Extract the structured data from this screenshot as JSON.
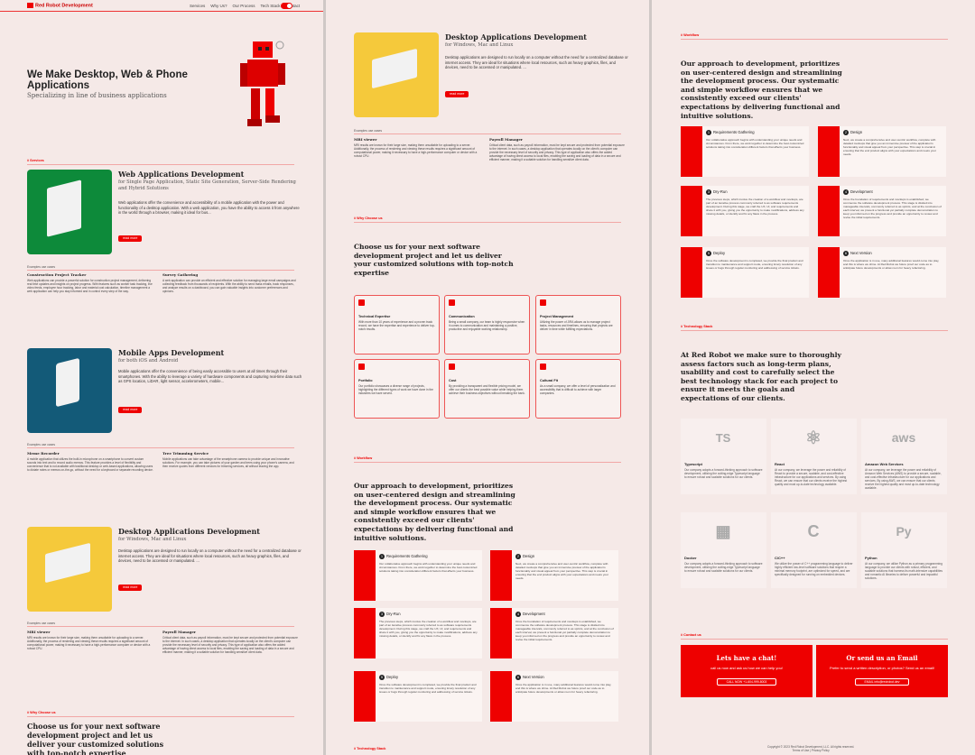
{
  "header": {
    "logo": "Red Robot Development",
    "nav": [
      "Services",
      "Why Us?",
      "Our Process",
      "Tech Stack",
      "Contact"
    ]
  },
  "hero": {
    "title": "We Make Desktop, Web & Phone Applications",
    "subtitle": "Specializing in line of business applications"
  },
  "labels": {
    "services": "# Services",
    "why": "# Why Choose us",
    "workflow": "# Workflow",
    "tech": "# Technology Stack",
    "contact": "# Contact us",
    "examples": "Examples use cases",
    "read_more": "read more"
  },
  "services": [
    {
      "title": "Web Applications Development",
      "sub": "for Single Page Application, Static Site Generation, Server-Side Rendering and Hybrid Solutions",
      "desc": "Web applications offer the convenience and accessibility of a mobile application with the power and functionality of a desktop application. With a web application, you have the ability to access it from anywhere in the world through a browser, making it ideal for bus...",
      "color": "#0d8a3a",
      "examples": [
        {
          "t": "Construction Project Tracker",
          "d": "Web applications can provide a powerful solution for construction project management, delivering real time updates and insights on project progress. With features such as worker task tracking, live video feeds, employee hour tracking, labor and material cost calculation, timeline management a web application can help you stay informed and in control every step of the way."
        },
        {
          "t": "Survey Gathering",
          "d": "A web application can provide an efficient and effective solution for managing large email campaigns and collecting feedback from thousands of recipients. With the ability to send mass emails, track responses, and analyze results on a dashboard, you can gain valuable insights into customer preferences and opinions."
        }
      ]
    },
    {
      "title": "Mobile Apps Development",
      "sub": "for both iOS and Android",
      "desc": "Mobile applications offer the convenience of being easily accessible to users at all times through their smartphones. With the ability to leverage a variety of hardware components and capturing real-time data such as GPS location, LiDAR, light sensor, accelerometers, mobile...",
      "color": "#135a78",
      "examples": [
        {
          "t": "Meme Recorder",
          "d": "A mobile application that utilizes the built-in microphone on a smartphone to convert custom sounds into text and to record audio memos. This feature provides a level of flexibility and convenience that is not available with traditional desktop or web-based applications, allowing users to dictate notes or memos on-the-go, without the need for a keyboard or separate recording device."
        },
        {
          "t": "Tree Trimming Service",
          "d": "Mobile applications can take advantage of the smartphone camera to provide unique and innovative solutions. For example, you can take pictures of your garden and trees using your phone's camera, and then receive quotes from different vendors for trimming services, all without leaving the app."
        }
      ]
    },
    {
      "title": "Desktop Applications Development",
      "sub": "for Windows, Mac and Linux",
      "desc": "Desktop applications are designed to run locally on a computer without the need for a centralized database or internet access. They are ideal for situations where local resources, such as heavy graphics, files, and devices, need to be accessed or manipulated. ...",
      "color": "#f5c93b",
      "examples": [
        {
          "t": "MRI viewer",
          "d": "MRI results are known for their large size, making them unsuitable for uploading to a server. Additionally, the process of rendering and viewing these results requires a significant amount of computational power, making it necessary to have a high-performance computer or device with a robust CPU."
        },
        {
          "t": "Payroll Manager",
          "d": "Critical client data, such as payroll information, must be kept secure and protected from potential exposure to the internet. In such cases, a desktop application that operates locally on the client's computer can provide the necessary level of security and privacy. This type of application also offers the added advantage of having direct access to local files, enabling the saving and loading of data in a secure and efficient manner, making it a suitable solution for handling sensitive client data."
        }
      ]
    }
  ],
  "why": {
    "title": "Choose us for your next software development project and let us deliver your customized solutions with top-notch expertise",
    "cards": [
      {
        "t": "Technical Expertise",
        "d": "With more than 10 years of experience and a proven track record, we have the expertise and experience to deliver top-notch results."
      },
      {
        "t": "Communication",
        "d": "Being a small company, our team is highly responsive when it comes to communication and maintaining a positive, productive and enjoyable working relationship."
      },
      {
        "t": "Project Management",
        "d": "Utilizing the power of JIRA allows us to manage project tasks, resources and timelines, ensuring that projects are deliver in time while fulfilling expectations."
      },
      {
        "t": "Portfolio",
        "d": "Our portfolio showcases a diverse range of projects, highlighting the different types of work we have done in the industries we have served."
      },
      {
        "t": "Cost",
        "d": "By providing a transparent and flexible pricing model, we offer our clients the best possible value while helping them achieve their business objectives without breaking the bank."
      },
      {
        "t": "Cultural Fit",
        "d": "As a small company, we offer a level of personalization and accessibility that is difficult to achieve with larger companies."
      }
    ]
  },
  "workflow": {
    "title": "Our approach to development, prioritizes on user-centered design and streamlining the development process. Our systematic and simple workflow ensures that we consistently exceed our clients' expectations by delivering functional and intuitive solutions.",
    "steps": [
      {
        "n": "1",
        "t": "Requirements Gathering",
        "d": "Our collaborative approach begins with understanding your unique needs and circumstances. From there, we work together to determine the best customized solutions taking into consideration different factors that affects your business."
      },
      {
        "n": "2",
        "t": "Design",
        "d": "Next, we create a comprehensive and user-centric workflow, complete with detailed mockups that give you an immersive preview of the application's functionality and visual appeal from your perspective. This step is crucial in ensuring that the end product aligns with your expectations and meets your needs."
      },
      {
        "n": "3",
        "t": "Dry-Run",
        "d": "The previous steps, which involve the creation of a workflow and mockups, are part of an iterative process commonly referred to as software requirements development. During this stage, we craft the UX, UI, and requirements and share it with you, giving you the opportunity to make modifications, address any missing details, or identify and fix any flaws in the process."
      },
      {
        "n": "4",
        "t": "Development",
        "d": "Once the foundation of requirements and mockups is established, we commence the software development process. This stage is divided into manageable intervals, commonly referred to as sprints, and at the conclusion of each interval, we present a functional yet partially complete demonstration to keep you informed on the progress and provide an opportunity to review and revise the initial requirements."
      },
      {
        "n": "5",
        "t": "Deploy",
        "d": "Once the software development is completed, we provide the final product and transition to maintenance and support mode, ensuring timely resolution of any issues or bugs through regular monitoring and addressing of service tickets."
      },
      {
        "n": "6",
        "t": "Next Version",
        "d": "Once the application is in use, many additional features would come into play, and this is where we shine. At Red Robot we future proof our code as to anticipate future developments or allow room for heavy refactoring."
      }
    ]
  },
  "tech": {
    "title": "At Red Robot we make sure to thoroughly assess factors such as long-term plans, usability and cost to carefully select the best technology stack for each project to ensure it meets the goals and expectations of our clients.",
    "items": [
      {
        "name": "Typescript",
        "mark": "TS",
        "d": "Our company adopts a forward-thinking approach to software development, utilizing the cutting-edge Typescript language to ensure robust and scalable solutions for our clients."
      },
      {
        "name": "React",
        "mark": "⚛",
        "d": "At our company, we leverage the power and reliability of React to provide a secure, scalable, and cost-effective infrastructure for our applications and services. By using React, we can ensure that our clients receive the highest quality and most up-to-date technology available."
      },
      {
        "name": "Amazon Web Services",
        "mark": "aws",
        "d": "At our company, we leverage the power and reliability of Amazon Web Services (AWS) to provide a secure, scalable, and cost-effective infrastructure for our applications and services. By using AWS, we can ensure that our clients receive the highest quality and most up-to-date technology available."
      },
      {
        "name": "Docker",
        "mark": "▦",
        "d": "Our company adopts a forward-thinking approach to software development, utilizing the cutting-edge Typescript language to ensure robust and scalable solutions for our clients."
      },
      {
        "name": "C/C++",
        "mark": "C",
        "d": "We utilize the power of C++ programming language to deliver highly efficient low-level software solutions that require a minimal memory footprint, are optimized for speed, and are specifically designed for running on embedded devices."
      },
      {
        "name": "Python",
        "mark": "Py",
        "d": "At our company, we utilize Python as a primary programming language to provide our clients with robust, efficient, and scalable solutions that harness its math-intensive capabilities and romantic AI libraries to deliver powerful and impactful solutions."
      }
    ]
  },
  "contact": {
    "chat": {
      "t": "Lets have a chat!",
      "d": "call us now and ask us how we can help you!",
      "b": "CALL NOW +1-604-999-8003"
    },
    "email": {
      "t": "Or send us an Email",
      "d": "Prefer to send a written description, or photos? Send us an email!",
      "b": "EMAIL info@redrobot.dev"
    }
  },
  "footer": {
    "copy": "Copyright © 2023 Red Robot Development, LLC. All rights reserved.",
    "links": "Terms of Use | Privacy Policy"
  }
}
